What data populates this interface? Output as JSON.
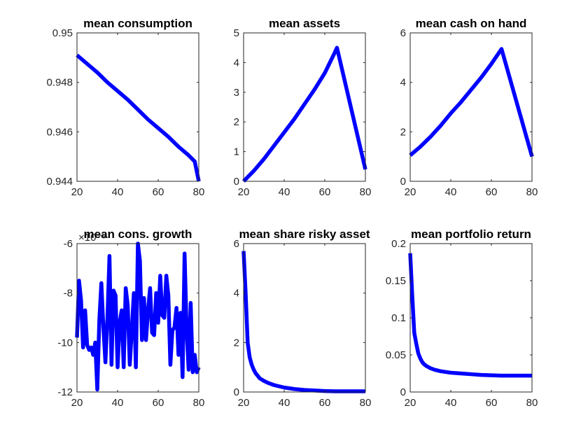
{
  "figure": {
    "background": "#ffffff",
    "line_color": "#0000ff"
  },
  "chart_data": [
    {
      "type": "line",
      "title": "mean consumption",
      "xlabel": "",
      "ylabel": "",
      "xlim": [
        20,
        80
      ],
      "ylim": [
        0.944,
        0.95
      ],
      "xticks": [
        20,
        40,
        60,
        80
      ],
      "yticks": [
        0.944,
        0.946,
        0.948,
        0.95
      ],
      "ytick_labels": [
        "0.944",
        "0.946",
        "0.948",
        "0.95"
      ],
      "series": [
        {
          "color": "#0000ff",
          "x": [
            20,
            25,
            30,
            35,
            40,
            45,
            50,
            55,
            60,
            65,
            70,
            75,
            78,
            80
          ],
          "y": [
            0.9491,
            0.94875,
            0.9484,
            0.948,
            0.94765,
            0.9473,
            0.9469,
            0.9465,
            0.94615,
            0.9458,
            0.9454,
            0.94505,
            0.9448,
            0.944
          ]
        }
      ]
    },
    {
      "type": "line",
      "title": "mean assets",
      "xlabel": "",
      "ylabel": "",
      "xlim": [
        20,
        80
      ],
      "ylim": [
        0,
        5
      ],
      "xticks": [
        20,
        40,
        60,
        80
      ],
      "yticks": [
        0,
        1,
        2,
        3,
        4,
        5
      ],
      "ytick_labels": [
        "0",
        "1",
        "2",
        "3",
        "4",
        "5"
      ],
      "series": [
        {
          "color": "#0000ff",
          "x": [
            20,
            25,
            30,
            35,
            40,
            45,
            50,
            55,
            60,
            65,
            66,
            80
          ],
          "y": [
            0.0,
            0.35,
            0.75,
            1.2,
            1.65,
            2.1,
            2.6,
            3.1,
            3.65,
            4.35,
            4.5,
            0.4
          ]
        }
      ]
    },
    {
      "type": "line",
      "title": "mean cash on hand",
      "xlabel": "",
      "ylabel": "",
      "xlim": [
        20,
        80
      ],
      "ylim": [
        0,
        6
      ],
      "xticks": [
        20,
        40,
        60,
        80
      ],
      "yticks": [
        0,
        2,
        4,
        6
      ],
      "ytick_labels": [
        "0",
        "2",
        "4",
        "6"
      ],
      "series": [
        {
          "color": "#0000ff",
          "x": [
            20,
            25,
            30,
            35,
            40,
            45,
            50,
            55,
            60,
            65,
            80
          ],
          "y": [
            1.05,
            1.4,
            1.8,
            2.25,
            2.75,
            3.2,
            3.7,
            4.2,
            4.75,
            5.35,
            1.0
          ]
        }
      ]
    },
    {
      "type": "line",
      "title": "mean cons. growth",
      "exponent_label": "×10⁻⁵",
      "xlabel": "",
      "ylabel": "",
      "xlim": [
        20,
        80
      ],
      "ylim": [
        -12,
        -6
      ],
      "xticks": [
        20,
        40,
        60,
        80
      ],
      "yticks": [
        -12,
        -10,
        -8,
        -6
      ],
      "ytick_labels": [
        "-12",
        "-10",
        "-8",
        "-6"
      ],
      "series": [
        {
          "color": "#0000ff",
          "x": [
            20,
            21,
            22,
            23,
            24,
            25,
            26,
            27,
            28,
            29,
            30,
            31,
            32,
            33,
            34,
            35,
            36,
            37,
            38,
            39,
            40,
            41,
            42,
            43,
            44,
            45,
            46,
            47,
            48,
            49,
            50,
            51,
            52,
            53,
            54,
            55,
            56,
            57,
            58,
            59,
            60,
            61,
            62,
            63,
            64,
            65,
            66,
            67,
            68,
            69,
            70,
            71,
            72,
            73,
            74,
            75,
            76,
            77,
            78,
            79,
            80
          ],
          "y": [
            -9.8,
            -7.5,
            -8.3,
            -10.2,
            -8.7,
            -10.1,
            -10.3,
            -10.2,
            -10.5,
            -10.0,
            -11.9,
            -9.1,
            -7.6,
            -9.4,
            -10.8,
            -9.0,
            -6.5,
            -10.9,
            -7.9,
            -8.1,
            -11.0,
            -9.2,
            -8.7,
            -11.0,
            -7.8,
            -8.5,
            -10.9,
            -9.5,
            -8.0,
            -11.0,
            -6.0,
            -6.7,
            -9.9,
            -8.2,
            -9.9,
            -8.7,
            -7.8,
            -9.6,
            -9.7,
            -8.0,
            -9.2,
            -7.3,
            -8.9,
            -9.0,
            -7.3,
            -8.1,
            -10.9,
            -9.5,
            -9.4,
            -8.6,
            -10.5,
            -8.8,
            -11.4,
            -6.4,
            -9.5,
            -11.1,
            -8.4,
            -11.2,
            -10.5,
            -11.2,
            -11.0
          ]
        }
      ]
    },
    {
      "type": "line",
      "title": "mean share risky asset",
      "xlabel": "",
      "ylabel": "",
      "xlim": [
        20,
        80
      ],
      "ylim": [
        0,
        6
      ],
      "xticks": [
        20,
        40,
        60,
        80
      ],
      "yticks": [
        0,
        2,
        4,
        6
      ],
      "ytick_labels": [
        "0",
        "2",
        "4",
        "6"
      ],
      "series": [
        {
          "color": "#0000ff",
          "x": [
            20,
            21,
            22,
            23,
            24,
            25,
            26,
            27,
            28,
            30,
            32,
            35,
            40,
            45,
            50,
            55,
            60,
            65,
            70,
            75,
            80
          ],
          "y": [
            5.7,
            4.0,
            2.0,
            1.4,
            1.1,
            0.9,
            0.75,
            0.65,
            0.55,
            0.45,
            0.37,
            0.28,
            0.18,
            0.12,
            0.08,
            0.06,
            0.04,
            0.03,
            0.03,
            0.03,
            0.03
          ]
        }
      ]
    },
    {
      "type": "line",
      "title": "mean portfolio return",
      "xlabel": "",
      "ylabel": "",
      "xlim": [
        20,
        80
      ],
      "ylim": [
        0,
        0.2
      ],
      "xticks": [
        20,
        40,
        60,
        80
      ],
      "yticks": [
        0,
        0.05,
        0.1,
        0.15,
        0.2
      ],
      "ytick_labels": [
        "0",
        "0.05",
        "0.1",
        "0.15",
        "0.2"
      ],
      "series": [
        {
          "color": "#0000ff",
          "x": [
            20,
            21,
            22,
            23,
            24,
            25,
            26,
            27,
            28,
            30,
            32,
            35,
            40,
            45,
            50,
            55,
            60,
            65,
            70,
            75,
            80
          ],
          "y": [
            0.187,
            0.13,
            0.08,
            0.065,
            0.052,
            0.045,
            0.04,
            0.037,
            0.035,
            0.032,
            0.03,
            0.028,
            0.026,
            0.025,
            0.024,
            0.023,
            0.0225,
            0.022,
            0.022,
            0.022,
            0.022
          ]
        }
      ]
    }
  ]
}
